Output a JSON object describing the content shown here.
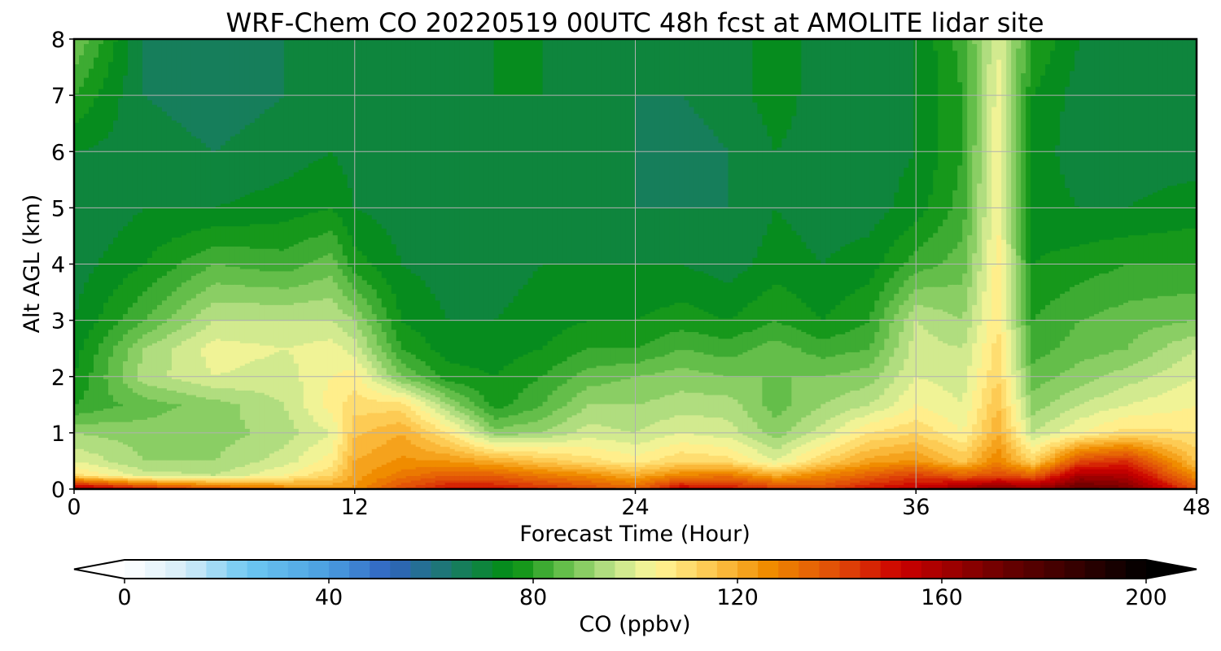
{
  "chart_data": {
    "type": "heatmap",
    "subtype": "filled-contour",
    "title": "WRF-Chem CO  20220519 00UTC 48h fcst at AMOLITE lidar site",
    "xlabel": "Forecast Time (Hour)",
    "ylabel": "Alt AGL (km)",
    "xlim": [
      0,
      48
    ],
    "ylim": [
      0,
      8
    ],
    "xticks": [
      0,
      12,
      24,
      36,
      48
    ],
    "yticks": [
      0,
      1,
      2,
      3,
      4,
      5,
      6,
      7,
      8
    ],
    "grid": true,
    "colorbar": {
      "label": "CO  (ppbv)",
      "range": [
        0,
        200
      ],
      "step": 4,
      "ticks": [
        0,
        40,
        80,
        120,
        160,
        200
      ],
      "extend": "both",
      "orientation": "horizontal",
      "placement": "bottom",
      "color_stops": [
        {
          "value": 0,
          "color": "#ffffff"
        },
        {
          "value": 12,
          "color": "#d4ecf8"
        },
        {
          "value": 24,
          "color": "#6dc8f2"
        },
        {
          "value": 40,
          "color": "#4a9ee0"
        },
        {
          "value": 52,
          "color": "#2f63bf"
        },
        {
          "value": 64,
          "color": "#1a7a6a"
        },
        {
          "value": 76,
          "color": "#028f0f"
        },
        {
          "value": 86,
          "color": "#64be4a"
        },
        {
          "value": 96,
          "color": "#c3e58c"
        },
        {
          "value": 104,
          "color": "#fff799"
        },
        {
          "value": 116,
          "color": "#fcc246"
        },
        {
          "value": 126,
          "color": "#f08c00"
        },
        {
          "value": 140,
          "color": "#e04a08"
        },
        {
          "value": 152,
          "color": "#cc0000"
        },
        {
          "value": 172,
          "color": "#6b0000"
        },
        {
          "value": 200,
          "color": "#000000"
        }
      ]
    },
    "field": {
      "x_hours": [
        0,
        3,
        6,
        9,
        11,
        12,
        14,
        16,
        18,
        20,
        22,
        24,
        26,
        28,
        30,
        32,
        34,
        36,
        38,
        39.5,
        41,
        43,
        45,
        48
      ],
      "z_km": [
        0,
        0.25,
        0.5,
        1,
        1.5,
        2,
        2.5,
        3,
        4,
        5,
        6,
        7,
        8
      ],
      "co_ppbv": [
        [
          165,
          110,
          100,
          92,
          80,
          76,
          74,
          72,
          70,
          68,
          72,
          80,
          88
        ],
        [
          150,
          98,
          92,
          90,
          86,
          94,
          92,
          84,
          76,
          72,
          70,
          68,
          68
        ],
        [
          140,
          96,
          92,
          90,
          90,
          100,
          102,
          96,
          84,
          72,
          68,
          66,
          66
        ],
        [
          130,
          104,
          98,
          94,
          96,
          98,
          100,
          96,
          82,
          74,
          70,
          68,
          68
        ],
        [
          125,
          112,
          106,
          100,
          106,
          104,
          102,
          96,
          86,
          76,
          72,
          70,
          70
        ],
        [
          125,
          122,
          120,
          115,
          110,
          106,
          98,
          92,
          78,
          72,
          70,
          70,
          70
        ],
        [
          140,
          130,
          125,
          120,
          110,
          88,
          80,
          76,
          72,
          70,
          70,
          70,
          70
        ],
        [
          150,
          136,
          124,
          108,
          92,
          78,
          74,
          72,
          70,
          70,
          70,
          70,
          70
        ],
        [
          150,
          135,
          120,
          90,
          78,
          76,
          74,
          72,
          70,
          70,
          70,
          72,
          72
        ],
        [
          145,
          130,
          115,
          92,
          84,
          80,
          76,
          74,
          72,
          72,
          72,
          72,
          72
        ],
        [
          140,
          126,
          110,
          98,
          92,
          86,
          80,
          76,
          72,
          70,
          70,
          70,
          70
        ],
        [
          135,
          120,
          106,
          96,
          92,
          88,
          80,
          76,
          72,
          68,
          68,
          68,
          70
        ],
        [
          155,
          128,
          112,
          100,
          94,
          90,
          84,
          78,
          72,
          68,
          66,
          68,
          70
        ],
        [
          150,
          130,
          110,
          98,
          94,
          88,
          82,
          76,
          70,
          68,
          68,
          70,
          70
        ],
        [
          145,
          120,
          100,
          90,
          86,
          88,
          86,
          80,
          74,
          72,
          72,
          74,
          74
        ],
        [
          140,
          128,
          112,
          98,
          92,
          88,
          82,
          76,
          72,
          70,
          70,
          70,
          70
        ],
        [
          150,
          135,
          122,
          108,
          96,
          90,
          84,
          80,
          74,
          70,
          70,
          70,
          70
        ],
        [
          155,
          142,
          125,
          112,
          104,
          100,
          98,
          96,
          82,
          74,
          72,
          72,
          72
        ],
        [
          165,
          135,
          115,
          104,
          100,
          98,
          96,
          92,
          86,
          82,
          80,
          80,
          82
        ],
        [
          170,
          140,
          128,
          120,
          116,
          112,
          110,
          108,
          106,
          104,
          104,
          102,
          100
        ],
        [
          165,
          135,
          112,
          96,
          90,
          86,
          82,
          80,
          76,
          74,
          74,
          76,
          80
        ],
        [
          175,
          160,
          140,
          104,
          96,
          90,
          86,
          84,
          78,
          72,
          70,
          70,
          72
        ],
        [
          170,
          158,
          145,
          110,
          100,
          94,
          88,
          86,
          80,
          72,
          70,
          70,
          72
        ],
        [
          140,
          125,
          115,
          108,
          104,
          100,
          96,
          88,
          80,
          74,
          70,
          70,
          70
        ]
      ]
    }
  }
}
